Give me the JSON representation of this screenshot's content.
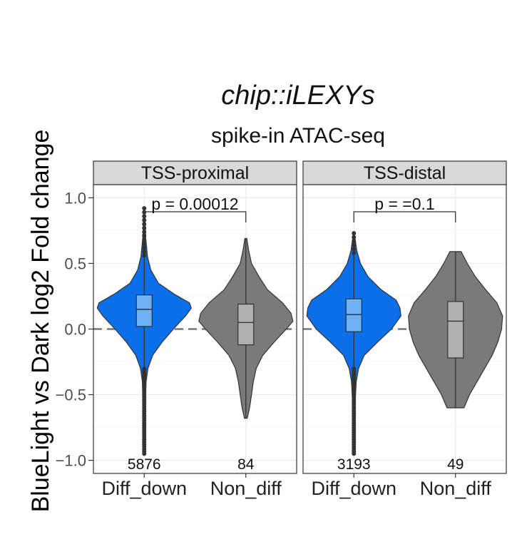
{
  "chart_data": {
    "type": "violin",
    "title": "chip::iLEXYs",
    "subtitle": "spike-in ATAC-seq",
    "ylabel_parts": [
      {
        "text": "BlueLight",
        "color": "#3b95d6"
      },
      {
        "text": " vs ",
        "color": "#222222"
      },
      {
        "text": "Dark",
        "color": "#8c8c8c"
      },
      {
        "text": " log2 Fold change",
        "color": "#222222"
      }
    ],
    "ylim": [
      -1.1,
      1.1
    ],
    "yticks": [
      -1.0,
      -0.5,
      0.0,
      0.5,
      1.0
    ],
    "ytick_labels": [
      "−1.0",
      "−0.5",
      "0.0",
      "0.5",
      "1.0"
    ],
    "reference_line": 0.0,
    "grid": true,
    "categories": [
      "Diff_down",
      "Non_diff"
    ],
    "colors": {
      "Diff_down": "#0a6fe8",
      "Non_diff": "#7a7a7a"
    },
    "box_colors": {
      "Diff_down": "#6fb2f5",
      "Non_diff": "#b0b0b0"
    },
    "panels": [
      {
        "facet": "TSS-proximal",
        "pvalue": "p = 0.00012",
        "groups": [
          {
            "name": "Diff_down",
            "n": "5876",
            "min": -0.95,
            "max": 0.92,
            "q1": 0.02,
            "median": 0.15,
            "q3": 0.26,
            "density": [
              [
                -0.95,
                0.01
              ],
              [
                -0.6,
                0.02
              ],
              [
                -0.4,
                0.04
              ],
              [
                -0.3,
                0.08
              ],
              [
                -0.2,
                0.18
              ],
              [
                -0.1,
                0.38
              ],
              [
                0.0,
                0.62
              ],
              [
                0.1,
                0.88
              ],
              [
                0.16,
                1.0
              ],
              [
                0.2,
                0.96
              ],
              [
                0.27,
                0.62
              ],
              [
                0.35,
                0.3
              ],
              [
                0.45,
                0.14
              ],
              [
                0.55,
                0.07
              ],
              [
                0.7,
                0.03
              ],
              [
                0.92,
                0.01
              ]
            ]
          },
          {
            "name": "Non_diff",
            "n": "84",
            "min": -0.68,
            "max": 0.69,
            "q1": -0.12,
            "median": 0.05,
            "q3": 0.19,
            "density": [
              [
                -0.68,
                0.03
              ],
              [
                -0.6,
                0.08
              ],
              [
                -0.5,
                0.12
              ],
              [
                -0.4,
                0.16
              ],
              [
                -0.3,
                0.22
              ],
              [
                -0.2,
                0.36
              ],
              [
                -0.1,
                0.6
              ],
              [
                0.0,
                0.86
              ],
              [
                0.06,
                1.0
              ],
              [
                0.12,
                0.96
              ],
              [
                0.2,
                0.78
              ],
              [
                0.3,
                0.46
              ],
              [
                0.4,
                0.28
              ],
              [
                0.5,
                0.12
              ],
              [
                0.6,
                0.06
              ],
              [
                0.69,
                0.02
              ]
            ]
          }
        ]
      },
      {
        "facet": "TSS-distal",
        "pvalue": "p = =0.1",
        "groups": [
          {
            "name": "Diff_down",
            "n": "3193",
            "min": -0.95,
            "max": 0.73,
            "q1": -0.02,
            "median": 0.11,
            "q3": 0.23,
            "density": [
              [
                -0.95,
                0.01
              ],
              [
                -0.6,
                0.02
              ],
              [
                -0.4,
                0.05
              ],
              [
                -0.3,
                0.1
              ],
              [
                -0.2,
                0.22
              ],
              [
                -0.1,
                0.5
              ],
              [
                0.0,
                0.8
              ],
              [
                0.1,
                1.0
              ],
              [
                0.16,
                0.98
              ],
              [
                0.22,
                0.9
              ],
              [
                0.3,
                0.58
              ],
              [
                0.4,
                0.3
              ],
              [
                0.5,
                0.14
              ],
              [
                0.6,
                0.06
              ],
              [
                0.73,
                0.01
              ]
            ]
          },
          {
            "name": "Non_diff",
            "n": "49",
            "min": -0.6,
            "max": 0.59,
            "q1": -0.22,
            "median": 0.06,
            "q3": 0.21,
            "density": [
              [
                -0.6,
                0.18
              ],
              [
                -0.5,
                0.3
              ],
              [
                -0.4,
                0.46
              ],
              [
                -0.3,
                0.62
              ],
              [
                -0.2,
                0.78
              ],
              [
                -0.1,
                0.9
              ],
              [
                0.0,
                0.98
              ],
              [
                0.1,
                1.0
              ],
              [
                0.2,
                0.88
              ],
              [
                0.3,
                0.64
              ],
              [
                0.4,
                0.42
              ],
              [
                0.5,
                0.25
              ],
              [
                0.59,
                0.12
              ]
            ]
          }
        ]
      }
    ]
  }
}
